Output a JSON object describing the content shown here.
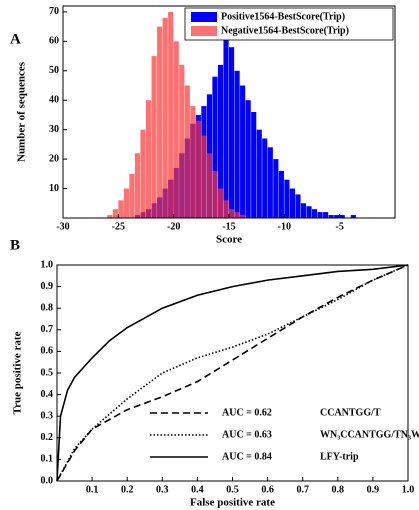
{
  "chart_data": [
    {
      "type": "histogram",
      "panel_label": "A",
      "x_label": "Score",
      "y_label": "Number of sequences",
      "bins": [
        -26,
        -25.5,
        -25,
        -24.5,
        -24,
        -23.5,
        -23,
        -22.5,
        -22,
        -21.5,
        -21,
        -20.5,
        -20,
        -19.5,
        -19,
        -18.5,
        -18,
        -17.5,
        -17,
        -16.5,
        -16,
        -15.5,
        -15,
        -14.5,
        -14,
        -13.5,
        -13,
        -12.5,
        -12,
        -11.5,
        -11,
        -10.5,
        -10,
        -9.5,
        -9,
        -8.5,
        -8,
        -7.5,
        -7,
        -6.5,
        -6,
        -5.5,
        -5,
        -4.5,
        -4,
        -3.5,
        -3
      ],
      "series": [
        {
          "name": "Positive1564-BestScore(Trip)",
          "color": "#0000ff",
          "opacity": 1,
          "values": [
            0,
            0,
            0,
            0,
            0,
            1,
            2,
            3,
            5,
            7,
            10,
            13,
            17,
            22,
            27,
            32,
            35,
            38,
            42,
            48,
            52,
            62,
            58,
            50,
            45,
            40,
            36,
            30,
            27,
            24,
            20,
            16,
            13,
            10,
            8,
            5,
            4,
            3,
            2,
            2,
            1,
            1,
            1,
            0,
            1,
            0
          ]
        },
        {
          "name": "Negative1564-BestScore(Trip)",
          "color": "#ff3333",
          "opacity": 0.7,
          "values": [
            1,
            3,
            6,
            10,
            15,
            22,
            30,
            40,
            55,
            65,
            68,
            70,
            60,
            52,
            45,
            38,
            33,
            28,
            22,
            16,
            10,
            6,
            3,
            2,
            1,
            0,
            0,
            0,
            0,
            0,
            0,
            0,
            0,
            0,
            0,
            0,
            0,
            0,
            0,
            0,
            0,
            0,
            0,
            0,
            0,
            0
          ]
        }
      ],
      "xlim": [
        -30,
        0
      ],
      "xticks": [
        -30,
        -25,
        -20,
        -15,
        -10,
        -5
      ],
      "ylim": [
        0,
        72
      ],
      "yticks": [
        10,
        20,
        30,
        40,
        50,
        60,
        70
      ],
      "legend": "top-right"
    },
    {
      "type": "line",
      "panel_label": "B",
      "x_label": "False positive rate",
      "y_label": "True positive rate",
      "series": [
        {
          "name": "CCANTGG/T",
          "auc_label": "AUC = 0.62",
          "color": "#000000",
          "dash": "dashed",
          "x": [
            0,
            0.05,
            0.1,
            0.2,
            0.3,
            0.4,
            0.5,
            0.6,
            0.7,
            0.8,
            0.9,
            1.0
          ],
          "values": [
            0,
            0.14,
            0.24,
            0.33,
            0.39,
            0.46,
            0.56,
            0.66,
            0.76,
            0.85,
            0.93,
            1.0
          ]
        },
        {
          "name": "WN₃CCANTGG/TN₃W",
          "auc_label": "AUC = 0.63",
          "color": "#000000",
          "dash": "dotted",
          "x": [
            0,
            0.05,
            0.1,
            0.2,
            0.3,
            0.4,
            0.5,
            0.6,
            0.7,
            0.8,
            0.9,
            1.0
          ],
          "values": [
            0,
            0.15,
            0.24,
            0.38,
            0.5,
            0.57,
            0.62,
            0.68,
            0.76,
            0.84,
            0.93,
            1.0
          ]
        },
        {
          "name": "LFY-trip",
          "auc_label": "AUC = 0.84",
          "color": "#000000",
          "dash": "solid",
          "x": [
            0,
            0.01,
            0.03,
            0.05,
            0.1,
            0.15,
            0.2,
            0.3,
            0.4,
            0.5,
            0.6,
            0.7,
            0.8,
            0.9,
            1.0
          ],
          "values": [
            0,
            0.3,
            0.42,
            0.48,
            0.57,
            0.65,
            0.71,
            0.8,
            0.86,
            0.9,
            0.93,
            0.95,
            0.97,
            0.98,
            1.0
          ]
        }
      ],
      "xlim": [
        0,
        1
      ],
      "xticks": [
        0.1,
        0.2,
        0.3,
        0.4,
        0.5,
        0.6,
        0.7,
        0.8,
        0.9,
        {
          "value": 1,
          "label": "1.0"
        }
      ],
      "ylim": [
        0,
        1
      ],
      "yticks": [
        {
          "value": 0,
          "label": "0.0"
        },
        0.1,
        0.2,
        0.3,
        0.4,
        0.5,
        0.6,
        0.7,
        0.8,
        0.9,
        {
          "value": 1,
          "label": "1.0"
        }
      ],
      "legend": "lower-right"
    }
  ]
}
